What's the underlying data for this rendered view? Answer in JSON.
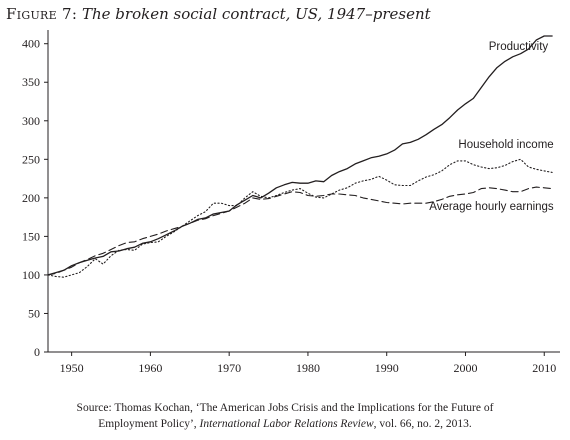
{
  "figure": {
    "label": "Figure 7:",
    "title": "The broken social contract, US, 1947–present"
  },
  "source": {
    "line1": "Source: Thomas Kochan, ‘The American Jobs Crisis and the Implications for the Future of",
    "line2_plain": "Employment Policy’, ",
    "journal": "International Labor Relations Review",
    "line2_tail": ", vol. 66, no. 2, 2013."
  },
  "colors": {
    "ink": "#231f20",
    "background": "#ffffff"
  },
  "chart_data": {
    "type": "line",
    "title": "The broken social contract, US, 1947–present",
    "xlabel": "",
    "ylabel": "",
    "xlim": [
      1947,
      2012
    ],
    "ylim": [
      0,
      410
    ],
    "x_ticks": [
      1950,
      1960,
      1970,
      1980,
      1990,
      2000,
      2010
    ],
    "y_ticks": [
      0,
      50,
      100,
      150,
      200,
      250,
      300,
      350,
      400
    ],
    "grid": false,
    "series": [
      {
        "name": "Productivity",
        "style": "solid",
        "x": [
          1947,
          1948,
          1949,
          1950,
          1951,
          1952,
          1953,
          1954,
          1955,
          1956,
          1957,
          1958,
          1959,
          1960,
          1961,
          1962,
          1963,
          1964,
          1965,
          1966,
          1967,
          1968,
          1969,
          1970,
          1971,
          1972,
          1973,
          1974,
          1975,
          1976,
          1977,
          1978,
          1979,
          1980,
          1981,
          1982,
          1983,
          1984,
          1985,
          1986,
          1987,
          1988,
          1989,
          1990,
          1991,
          1992,
          1993,
          1994,
          1995,
          1996,
          1997,
          1998,
          1999,
          2000,
          2001,
          2002,
          2003,
          2004,
          2005,
          2006,
          2007,
          2008,
          2009,
          2010,
          2011
        ],
        "values": [
          100,
          103,
          106,
          112,
          116,
          119,
          122,
          124,
          130,
          131,
          134,
          136,
          141,
          143,
          147,
          152,
          157,
          163,
          167,
          172,
          174,
          179,
          181,
          183,
          191,
          197,
          203,
          200,
          206,
          213,
          217,
          220,
          219,
          219,
          222,
          221,
          229,
          234,
          238,
          244,
          248,
          252,
          254,
          257,
          262,
          270,
          272,
          276,
          282,
          289,
          295,
          304,
          314,
          322,
          329,
          343,
          357,
          369,
          377,
          383,
          387,
          393,
          405,
          410,
          410
        ]
      },
      {
        "name": "Household income",
        "style": "dotted",
        "x": [
          1947,
          1948,
          1949,
          1950,
          1951,
          1952,
          1953,
          1954,
          1955,
          1956,
          1957,
          1958,
          1959,
          1960,
          1961,
          1962,
          1963,
          1964,
          1965,
          1966,
          1967,
          1968,
          1969,
          1970,
          1971,
          1972,
          1973,
          1974,
          1975,
          1976,
          1977,
          1978,
          1979,
          1980,
          1981,
          1982,
          1983,
          1984,
          1985,
          1986,
          1987,
          1988,
          1989,
          1990,
          1991,
          1992,
          1993,
          1994,
          1995,
          1996,
          1997,
          1998,
          1999,
          2000,
          2001,
          2002,
          2003,
          2004,
          2005,
          2006,
          2007,
          2008,
          2009,
          2010,
          2011
        ],
        "values": [
          100,
          98,
          97,
          100,
          103,
          111,
          121,
          114,
          125,
          132,
          133,
          132,
          140,
          142,
          143,
          150,
          156,
          163,
          170,
          177,
          182,
          193,
          193,
          190,
          190,
          200,
          208,
          202,
          200,
          203,
          207,
          210,
          212,
          206,
          201,
          200,
          205,
          210,
          213,
          219,
          222,
          224,
          228,
          223,
          217,
          216,
          216,
          222,
          227,
          230,
          235,
          243,
          248,
          248,
          243,
          240,
          238,
          239,
          242,
          247,
          250,
          240,
          237,
          235,
          233
        ]
      },
      {
        "name": "Average hourly earnings",
        "style": "dashed",
        "x": [
          1947,
          1948,
          1949,
          1950,
          1951,
          1952,
          1953,
          1954,
          1955,
          1956,
          1957,
          1958,
          1959,
          1960,
          1961,
          1962,
          1963,
          1964,
          1965,
          1966,
          1967,
          1968,
          1969,
          1970,
          1971,
          1972,
          1973,
          1974,
          1975,
          1976,
          1977,
          1978,
          1979,
          1980,
          1981,
          1982,
          1983,
          1984,
          1985,
          1986,
          1987,
          1988,
          1989,
          1990,
          1991,
          1992,
          1993,
          1994,
          1995,
          1996,
          1997,
          1998,
          1999,
          2000,
          2001,
          2002,
          2003,
          2004,
          2005,
          2006,
          2007,
          2008,
          2009,
          2010,
          2011
        ],
        "values": [
          100,
          102,
          106,
          110,
          116,
          120,
          125,
          128,
          133,
          138,
          142,
          143,
          147,
          150,
          153,
          157,
          160,
          163,
          167,
          171,
          173,
          177,
          180,
          183,
          188,
          193,
          200,
          198,
          199,
          202,
          205,
          208,
          207,
          203,
          202,
          203,
          205,
          205,
          204,
          203,
          200,
          198,
          196,
          194,
          193,
          192,
          193,
          193,
          193,
          195,
          198,
          202,
          204,
          205,
          207,
          212,
          213,
          212,
          210,
          208,
          208,
          212,
          214,
          213,
          212
        ]
      }
    ],
    "series_labels": [
      "Productivity",
      "Household income",
      "Average hourly earnings"
    ]
  }
}
